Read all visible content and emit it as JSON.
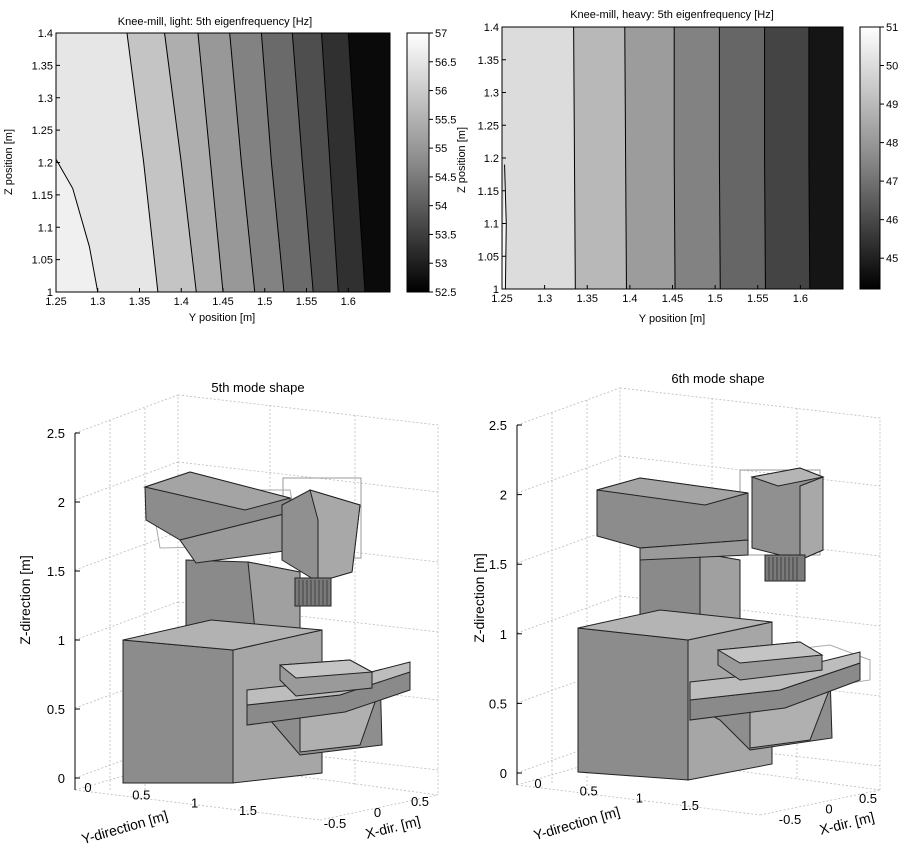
{
  "chart_data": [
    {
      "type": "heatmap",
      "subtype": "filled-contour",
      "title": "Knee-mill, light:  5th eigenfrequency [Hz]",
      "xlabel": "Y position [m]",
      "ylabel": "Z position [m]",
      "xlim": [
        1.25,
        1.65
      ],
      "ylim": [
        1.0,
        1.4
      ],
      "xticks": [
        "1.25",
        "1.3",
        "1.35",
        "1.4",
        "1.45",
        "1.5",
        "1.55",
        "1.6"
      ],
      "yticks": [
        "1",
        "1.05",
        "1.1",
        "1.15",
        "1.2",
        "1.25",
        "1.3",
        "1.35",
        "1.4"
      ],
      "colorbar": {
        "range": [
          52.5,
          57
        ],
        "ticks": [
          "52.5",
          "53",
          "53.5",
          "54",
          "54.5",
          "55",
          "55.5",
          "56",
          "56.5",
          "57"
        ]
      },
      "contour_boundaries": [
        {
          "points": [
            [
              1.25,
              1.205
            ],
            [
              1.27,
              1.16
            ],
            [
              1.29,
              1.07
            ],
            [
              1.3,
              1.0
            ]
          ]
        },
        {
          "points": [
            [
              1.335,
              1.4
            ],
            [
              1.355,
              1.2
            ],
            [
              1.372,
              1.0
            ]
          ]
        },
        {
          "points": [
            [
              1.38,
              1.4
            ],
            [
              1.4,
              1.2
            ],
            [
              1.418,
              1.0
            ]
          ]
        },
        {
          "points": [
            [
              1.42,
              1.4
            ],
            [
              1.435,
              1.2
            ],
            [
              1.45,
              1.0
            ]
          ]
        },
        {
          "points": [
            [
              1.458,
              1.4
            ],
            [
              1.472,
              1.2
            ],
            [
              1.488,
              1.0
            ]
          ]
        },
        {
          "points": [
            [
              1.496,
              1.4
            ],
            [
              1.508,
              1.2
            ],
            [
              1.523,
              1.0
            ]
          ]
        },
        {
          "points": [
            [
              1.533,
              1.4
            ],
            [
              1.545,
              1.2
            ],
            [
              1.558,
              1.0
            ]
          ]
        },
        {
          "points": [
            [
              1.568,
              1.4
            ],
            [
              1.578,
              1.2
            ],
            [
              1.588,
              1.0
            ]
          ]
        },
        {
          "points": [
            [
              1.6,
              1.4
            ],
            [
              1.61,
              1.2
            ],
            [
              1.62,
              1.0
            ]
          ]
        }
      ]
    },
    {
      "type": "heatmap",
      "subtype": "filled-contour",
      "title": "Knee-mill, heavy:  5th eigenfrequency [Hz]",
      "xlabel": "Y position [m]",
      "ylabel": "Z position [m]",
      "xlim": [
        1.25,
        1.65
      ],
      "ylim": [
        1.0,
        1.4
      ],
      "xticks": [
        "1.25",
        "1.3",
        "1.35",
        "1.4",
        "1.45",
        "1.5",
        "1.55",
        "1.6"
      ],
      "yticks": [
        "1",
        "1.05",
        "1.1",
        "1.15",
        "1.2",
        "1.25",
        "1.3",
        "1.35",
        "1.4"
      ],
      "colorbar": {
        "range": [
          44.2,
          51
        ],
        "ticks": [
          "45",
          "46",
          "47",
          "48",
          "49",
          "50",
          "51"
        ]
      },
      "contour_boundaries": [
        {
          "points": [
            [
              1.253,
              1.19
            ],
            [
              1.255,
              1.1
            ],
            [
              1.254,
              1.0
            ]
          ]
        },
        {
          "points": [
            [
              1.334,
              1.4
            ],
            [
              1.335,
              1.2
            ],
            [
              1.336,
              1.0
            ]
          ]
        },
        {
          "points": [
            [
              1.394,
              1.4
            ],
            [
              1.395,
              1.2
            ],
            [
              1.396,
              1.0
            ]
          ]
        },
        {
          "points": [
            [
              1.452,
              1.4
            ],
            [
              1.452,
              1.2
            ],
            [
              1.453,
              1.0
            ]
          ]
        },
        {
          "points": [
            [
              1.505,
              1.4
            ],
            [
              1.505,
              1.2
            ],
            [
              1.506,
              1.0
            ]
          ]
        },
        {
          "points": [
            [
              1.558,
              1.4
            ],
            [
              1.558,
              1.2
            ],
            [
              1.559,
              1.0
            ]
          ]
        },
        {
          "points": [
            [
              1.61,
              1.4
            ],
            [
              1.61,
              1.2
            ],
            [
              1.611,
              1.0
            ]
          ]
        }
      ]
    },
    {
      "type": "other",
      "subtype": "3d-structure",
      "title": "5th mode shape",
      "zlabel": "Z-direction [m]",
      "ylabel": "Y-direction [m]",
      "xlabel": "X-dir. [m]",
      "zticks": [
        "0",
        "0.5",
        "1",
        "1.5",
        "2",
        "2.5"
      ],
      "yticks": [
        "0",
        "0.5",
        "1",
        "1.5"
      ],
      "xticks": [
        "-0.5",
        "0",
        "0.5"
      ]
    },
    {
      "type": "other",
      "subtype": "3d-structure",
      "title": "6th mode shape",
      "zlabel": "Z-direction [m]",
      "ylabel": "Y-direction [m]",
      "xlabel": "X-dir. [m]",
      "zticks": [
        "0",
        "0.5",
        "1",
        "1.5",
        "2",
        "2.5"
      ],
      "yticks": [
        "0",
        "0.5",
        "1",
        "1.5"
      ],
      "xticks": [
        "-0.5",
        "0",
        "0.5"
      ]
    }
  ]
}
